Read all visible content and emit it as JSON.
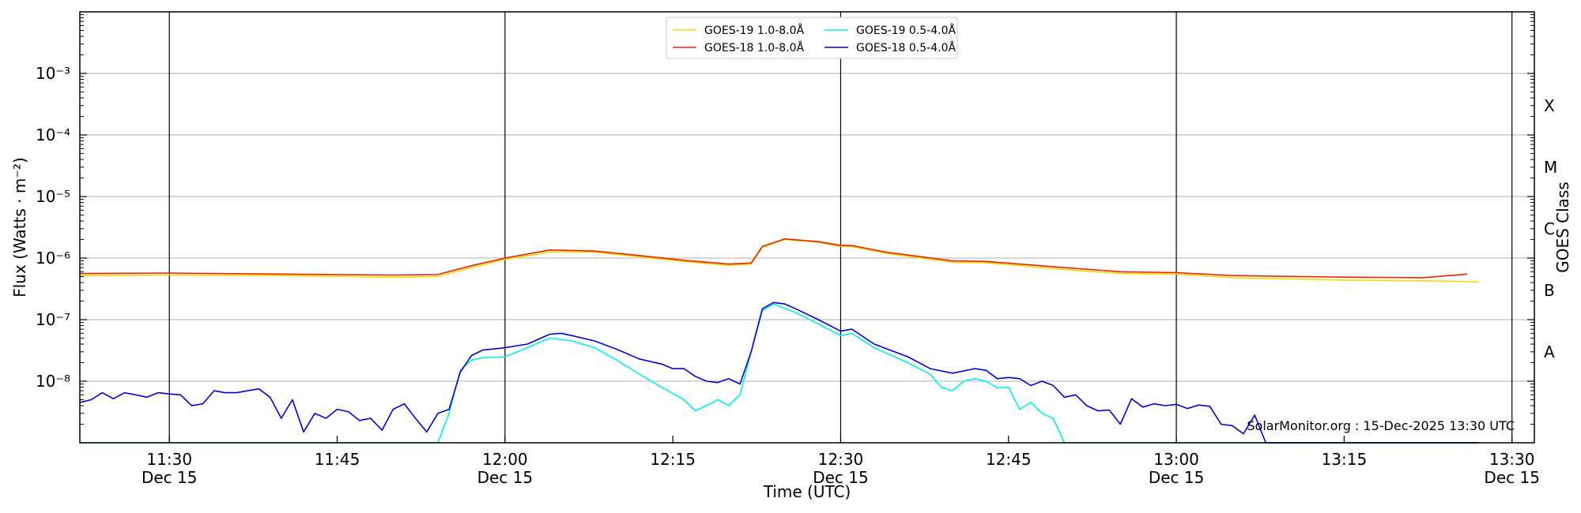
{
  "chart_data": {
    "type": "line",
    "title": "",
    "xlabel": "Time (UTC)",
    "ylabel": "Flux (Watts · m⁻²)",
    "y2label": "GOES Class",
    "yscale": "log",
    "ylim": [
      1e-09,
      0.01
    ],
    "xlim": [
      "2025-12-15 11:22",
      "2025-12-15 13:32"
    ],
    "grid": "horizontal at decades; vertical lines at 30-minute marks",
    "legend_position": "top-center",
    "x_ticks": [
      {
        "time": "11:30",
        "date": "Dec 15"
      },
      {
        "time": "11:45",
        "date": ""
      },
      {
        "time": "12:00",
        "date": "Dec 15"
      },
      {
        "time": "12:15",
        "date": ""
      },
      {
        "time": "12:30",
        "date": "Dec 15"
      },
      {
        "time": "12:45",
        "date": ""
      },
      {
        "time": "13:00",
        "date": "Dec 15"
      },
      {
        "time": "13:15",
        "date": ""
      },
      {
        "time": "13:30",
        "date": "Dec 15"
      }
    ],
    "y_ticks": [
      {
        "value": 1e-08,
        "label": "10⁻⁸"
      },
      {
        "value": 1e-07,
        "label": "10⁻⁷"
      },
      {
        "value": 1e-06,
        "label": "10⁻⁶"
      },
      {
        "value": 1e-05,
        "label": "10⁻⁵"
      },
      {
        "value": 0.0001,
        "label": "10⁻⁴"
      },
      {
        "value": 0.001,
        "label": "10⁻³"
      }
    ],
    "goes_classes": [
      {
        "label": "A",
        "value": 3e-08
      },
      {
        "label": "B",
        "value": 3e-07
      },
      {
        "label": "C",
        "value": 3e-06
      },
      {
        "label": "M",
        "value": 3e-05
      },
      {
        "label": "X",
        "value": 0.0003
      }
    ],
    "annotation": "SolarMonitor.org : 15-Dec-2025 13:30 UTC",
    "series": [
      {
        "name": "GOES-19 1.0-8.0Å",
        "color": "#ffd700",
        "points": [
          [
            "11:22",
            5.2e-07
          ],
          [
            "11:30",
            5.3e-07
          ],
          [
            "11:40",
            5.2e-07
          ],
          [
            "11:50",
            4.9e-07
          ],
          [
            "11:54",
            5e-07
          ],
          [
            "11:57",
            7e-07
          ],
          [
            "12:00",
            9.5e-07
          ],
          [
            "12:04",
            1.25e-06
          ],
          [
            "12:08",
            1.25e-06
          ],
          [
            "12:12",
            1.05e-06
          ],
          [
            "12:16",
            8.8e-07
          ],
          [
            "12:20",
            7.6e-07
          ],
          [
            "12:22",
            8e-07
          ],
          [
            "12:23",
            1.5e-06
          ],
          [
            "12:25",
            2e-06
          ],
          [
            "12:28",
            1.8e-06
          ],
          [
            "12:30",
            1.55e-06
          ],
          [
            "12:31",
            1.55e-06
          ],
          [
            "12:34",
            1.2e-06
          ],
          [
            "12:40",
            8.5e-07
          ],
          [
            "12:43",
            8.4e-07
          ],
          [
            "12:50",
            6.5e-07
          ],
          [
            "12:55",
            5.6e-07
          ],
          [
            "13:00",
            5.5e-07
          ],
          [
            "13:05",
            4.8e-07
          ],
          [
            "13:15",
            4.4e-07
          ],
          [
            "13:25",
            4.2e-07
          ],
          [
            "13:27",
            4.1e-07
          ]
        ]
      },
      {
        "name": "GOES-18 1.0-8.0Å",
        "color": "#ee2200",
        "points": [
          [
            "11:22",
            5.6e-07
          ],
          [
            "11:30",
            5.7e-07
          ],
          [
            "11:40",
            5.5e-07
          ],
          [
            "11:50",
            5.3e-07
          ],
          [
            "11:54",
            5.4e-07
          ],
          [
            "11:57",
            7.5e-07
          ],
          [
            "12:00",
            1e-06
          ],
          [
            "12:04",
            1.35e-06
          ],
          [
            "12:08",
            1.3e-06
          ],
          [
            "12:12",
            1.1e-06
          ],
          [
            "12:16",
            9.2e-07
          ],
          [
            "12:20",
            8e-07
          ],
          [
            "12:22",
            8.3e-07
          ],
          [
            "12:23",
            1.55e-06
          ],
          [
            "12:25",
            2.05e-06
          ],
          [
            "12:28",
            1.85e-06
          ],
          [
            "12:30",
            1.6e-06
          ],
          [
            "12:31",
            1.6e-06
          ],
          [
            "12:34",
            1.25e-06
          ],
          [
            "12:40",
            9e-07
          ],
          [
            "12:43",
            8.8e-07
          ],
          [
            "12:50",
            7e-07
          ],
          [
            "12:55",
            6e-07
          ],
          [
            "13:00",
            5.8e-07
          ],
          [
            "13:05",
            5.2e-07
          ],
          [
            "13:15",
            4.9e-07
          ],
          [
            "13:22",
            4.8e-07
          ],
          [
            "13:26",
            5.5e-07
          ]
        ]
      },
      {
        "name": "GOES-19 0.5-4.0Å",
        "color": "#00f0f0",
        "points": [
          [
            "11:22",
            1e-09
          ],
          [
            "11:54",
            1e-09
          ],
          [
            "11:55",
            3e-09
          ],
          [
            "11:56",
            1.5e-08
          ],
          [
            "11:57",
            2.2e-08
          ],
          [
            "11:58",
            2.4e-08
          ],
          [
            "12:00",
            2.5e-08
          ],
          [
            "12:02",
            3.5e-08
          ],
          [
            "12:04",
            5e-08
          ],
          [
            "12:06",
            4.5e-08
          ],
          [
            "12:08",
            3.5e-08
          ],
          [
            "12:10",
            2.2e-08
          ],
          [
            "12:12",
            1.3e-08
          ],
          [
            "12:14",
            8e-09
          ],
          [
            "12:16",
            5e-09
          ],
          [
            "12:17",
            3.3e-09
          ],
          [
            "12:18",
            4e-09
          ],
          [
            "12:19",
            5e-09
          ],
          [
            "12:20",
            4e-09
          ],
          [
            "12:21",
            6e-09
          ],
          [
            "12:22",
            3e-08
          ],
          [
            "12:23",
            1.4e-07
          ],
          [
            "12:24",
            1.8e-07
          ],
          [
            "12:26",
            1.3e-07
          ],
          [
            "12:28",
            8.5e-08
          ],
          [
            "12:30",
            5.5e-08
          ],
          [
            "12:31",
            6e-08
          ],
          [
            "12:33",
            3.5e-08
          ],
          [
            "12:36",
            2e-08
          ],
          [
            "12:38",
            1.3e-08
          ],
          [
            "12:39",
            8e-09
          ],
          [
            "12:40",
            7e-09
          ],
          [
            "12:41",
            1e-08
          ],
          [
            "12:42",
            1.1e-08
          ],
          [
            "12:43",
            1e-08
          ],
          [
            "12:44",
            7.8e-09
          ],
          [
            "12:45",
            8e-09
          ],
          [
            "12:46",
            3.5e-09
          ],
          [
            "12:47",
            4.5e-09
          ],
          [
            "12:48",
            3e-09
          ],
          [
            "12:49",
            2.5e-09
          ],
          [
            "12:50",
            1e-09
          ],
          [
            "13:27",
            1e-09
          ]
        ]
      },
      {
        "name": "GOES-18 0.5-4.0Å",
        "color": "#0000e0",
        "points": [
          [
            "11:22",
            4.5e-09
          ],
          [
            "11:23",
            5e-09
          ],
          [
            "11:24",
            6.5e-09
          ],
          [
            "11:25",
            5.2e-09
          ],
          [
            "11:26",
            6.5e-09
          ],
          [
            "11:27",
            6e-09
          ],
          [
            "11:28",
            5.5e-09
          ],
          [
            "11:29",
            6.5e-09
          ],
          [
            "11:30",
            6.2e-09
          ],
          [
            "11:31",
            6e-09
          ],
          [
            "11:32",
            4e-09
          ],
          [
            "11:33",
            4.3e-09
          ],
          [
            "11:34",
            7e-09
          ],
          [
            "11:35",
            6.5e-09
          ],
          [
            "11:36",
            6.5e-09
          ],
          [
            "11:37",
            7e-09
          ],
          [
            "11:38",
            7.5e-09
          ],
          [
            "11:39",
            5.5e-09
          ],
          [
            "11:40",
            2.5e-09
          ],
          [
            "11:41",
            5e-09
          ],
          [
            "11:42",
            1.5e-09
          ],
          [
            "11:43",
            3e-09
          ],
          [
            "11:44",
            2.5e-09
          ],
          [
            "11:45",
            3.5e-09
          ],
          [
            "11:46",
            3.2e-09
          ],
          [
            "11:47",
            2.3e-09
          ],
          [
            "11:48",
            2.5e-09
          ],
          [
            "11:49",
            1.6e-09
          ],
          [
            "11:50",
            3.5e-09
          ],
          [
            "11:51",
            4.3e-09
          ],
          [
            "11:52",
            2.5e-09
          ],
          [
            "11:53",
            1.5e-09
          ],
          [
            "11:54",
            3e-09
          ],
          [
            "11:55",
            3.5e-09
          ],
          [
            "11:56",
            1.4e-08
          ],
          [
            "11:57",
            2.6e-08
          ],
          [
            "11:58",
            3.2e-08
          ],
          [
            "12:00",
            3.5e-08
          ],
          [
            "12:02",
            4e-08
          ],
          [
            "12:04",
            5.8e-08
          ],
          [
            "12:05",
            6e-08
          ],
          [
            "12:06",
            5.5e-08
          ],
          [
            "12:08",
            4.5e-08
          ],
          [
            "12:10",
            3.3e-08
          ],
          [
            "12:12",
            2.3e-08
          ],
          [
            "12:14",
            1.9e-08
          ],
          [
            "12:15",
            1.6e-08
          ],
          [
            "12:16",
            1.6e-08
          ],
          [
            "12:17",
            1.2e-08
          ],
          [
            "12:18",
            1e-08
          ],
          [
            "12:19",
            9.5e-09
          ],
          [
            "12:20",
            1.1e-08
          ],
          [
            "12:21",
            9e-09
          ],
          [
            "12:22",
            3e-08
          ],
          [
            "12:23",
            1.5e-07
          ],
          [
            "12:24",
            1.9e-07
          ],
          [
            "12:25",
            1.8e-07
          ],
          [
            "12:26",
            1.5e-07
          ],
          [
            "12:28",
            1e-07
          ],
          [
            "12:30",
            6.5e-08
          ],
          [
            "12:31",
            7e-08
          ],
          [
            "12:33",
            4e-08
          ],
          [
            "12:36",
            2.5e-08
          ],
          [
            "12:38",
            1.6e-08
          ],
          [
            "12:40",
            1.35e-08
          ],
          [
            "12:42",
            1.6e-08
          ],
          [
            "12:43",
            1.5e-08
          ],
          [
            "12:44",
            1.1e-08
          ],
          [
            "12:45",
            1.15e-08
          ],
          [
            "12:46",
            1.1e-08
          ],
          [
            "12:47",
            8.5e-09
          ],
          [
            "12:48",
            1e-08
          ],
          [
            "12:49",
            8.5e-09
          ],
          [
            "12:50",
            5.5e-09
          ],
          [
            "12:51",
            6e-09
          ],
          [
            "12:52",
            4e-09
          ],
          [
            "12:53",
            3.3e-09
          ],
          [
            "12:54",
            3.4e-09
          ],
          [
            "12:55",
            2e-09
          ],
          [
            "12:56",
            5.2e-09
          ],
          [
            "12:57",
            3.8e-09
          ],
          [
            "12:58",
            4.3e-09
          ],
          [
            "12:59",
            4e-09
          ],
          [
            "13:00",
            4.2e-09
          ],
          [
            "13:01",
            3.6e-09
          ],
          [
            "13:02",
            4.1e-09
          ],
          [
            "13:03",
            3.9e-09
          ],
          [
            "13:04",
            2e-09
          ],
          [
            "13:05",
            1.9e-09
          ],
          [
            "13:06",
            1.4e-09
          ],
          [
            "13:07",
            2.8e-09
          ],
          [
            "13:08",
            1e-09
          ],
          [
            "13:27",
            1e-09
          ]
        ]
      }
    ]
  }
}
